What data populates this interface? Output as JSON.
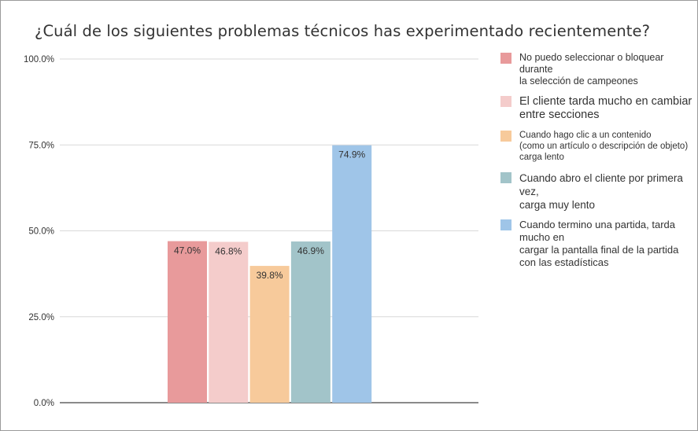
{
  "chart_data": {
    "type": "bar",
    "title": "¿Cuál de los siguientes problemas técnicos has experimentado recientemente?",
    "xlabel": "",
    "ylabel": "",
    "ylim": [
      0,
      100
    ],
    "yticks": [
      "0.0%",
      "25.0%",
      "50.0%",
      "75.0%",
      "100.0%"
    ],
    "grid": true,
    "legend_position": "right",
    "series": [
      {
        "name": "No puedo seleccionar o bloquear durante\nla selección de campeones",
        "value": 47.0,
        "label": "47.0%",
        "color": "#e89a9b"
      },
      {
        "name": "El cliente tarda mucho en cambiar\nentre secciones",
        "value": 46.8,
        "label": "46.8%",
        "color": "#f4cccb"
      },
      {
        "name": "Cuando hago clic a un contenido\n(como un artículo o descripción de objeto)\ncarga lento",
        "value": 39.8,
        "label": "39.8%",
        "color": "#f7ca9b"
      },
      {
        "name": "Cuando abro el cliente por primera vez,\ncarga muy lento",
        "value": 46.9,
        "label": "46.9%",
        "color": "#a2c4c9"
      },
      {
        "name": "Cuando termino una partida, tarda mucho en\ncargar la pantalla final de la partida\ncon las estadísticas",
        "value": 74.9,
        "label": "74.9%",
        "color": "#9fc5e8"
      }
    ]
  }
}
